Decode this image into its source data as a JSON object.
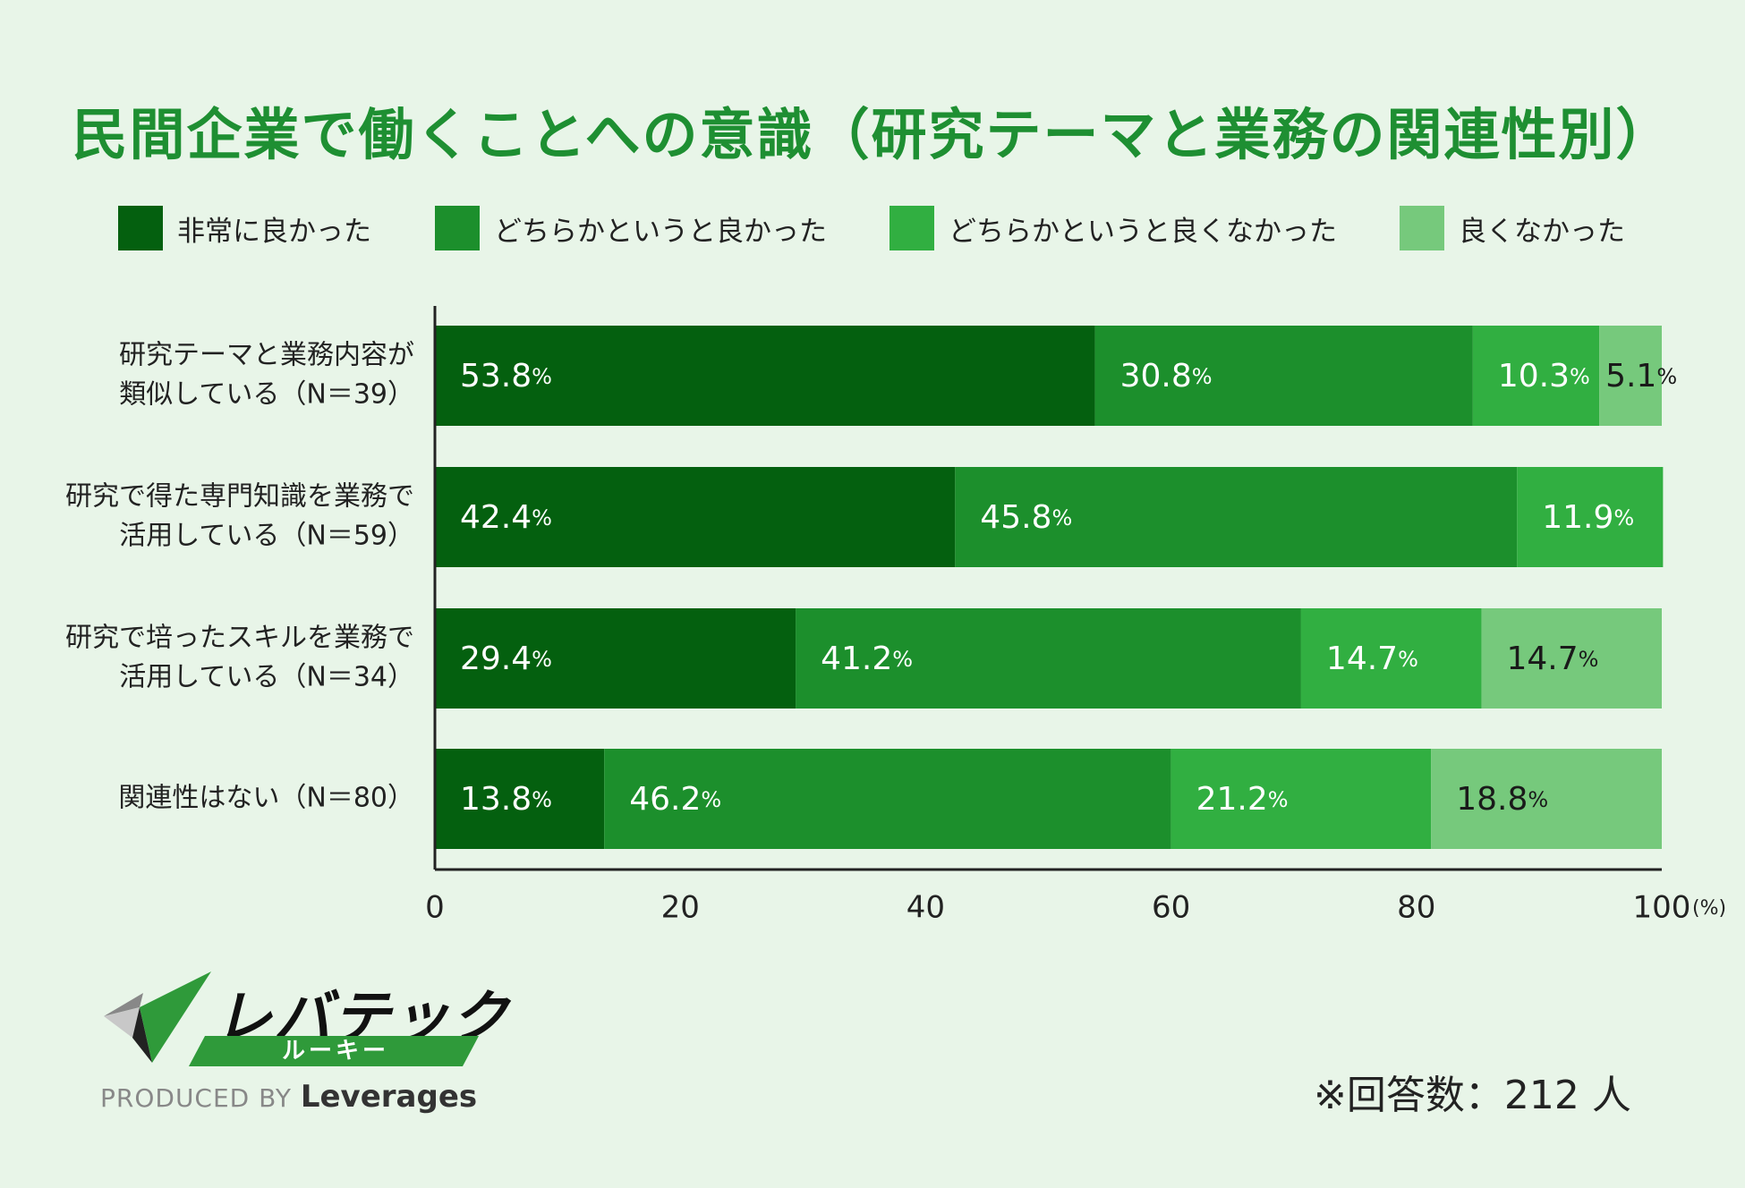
{
  "colors": {
    "background": "#e8f5e8",
    "title": "#1e8f32",
    "series": [
      "#04600f",
      "#1c8f2c",
      "#31af41",
      "#76c97c"
    ],
    "label_light": "#ffffff",
    "label_dark": "#1a1a1a"
  },
  "chart_data": {
    "type": "bar",
    "orientation": "horizontal",
    "stacked": true,
    "title": "民間企業で働くことへの意識（研究テーマと業務の関連性別）",
    "legend": [
      "非常に良かった",
      "どちらかというと良かった",
      "どちらかというと良くなかった",
      "良くなかった"
    ],
    "legend_position": "top",
    "categories": [
      [
        "研究テーマと業務内容が",
        "類似している（N＝39）"
      ],
      [
        "研究で得た専門知識を業務で",
        "活用している（N＝59）"
      ],
      [
        "研究で培ったスキルを業務で",
        "活用している（N＝34）"
      ],
      [
        "関連性はない（N＝80）"
      ]
    ],
    "series": [
      {
        "name": "非常に良かった",
        "values": [
          53.8,
          42.4,
          29.4,
          13.8
        ]
      },
      {
        "name": "どちらかというと良かった",
        "values": [
          30.8,
          45.8,
          41.2,
          46.2
        ]
      },
      {
        "name": "どちらかというと良くなかった",
        "values": [
          10.3,
          11.9,
          14.7,
          21.2
        ]
      },
      {
        "name": "良くなかった",
        "values": [
          5.1,
          0,
          14.7,
          18.8
        ]
      }
    ],
    "value_suffix": "%",
    "xlim": [
      0,
      100
    ],
    "xticks": [
      "0",
      "20",
      "40",
      "60",
      "80",
      "100"
    ],
    "xunit": "(%)",
    "grid": false
  },
  "footer": {
    "respondents": "※回答数：212 人"
  },
  "logo": {
    "name": "レバテック",
    "sub": "ルーキー",
    "produced_by": "PRODUCED BY",
    "company": "Leverages"
  }
}
